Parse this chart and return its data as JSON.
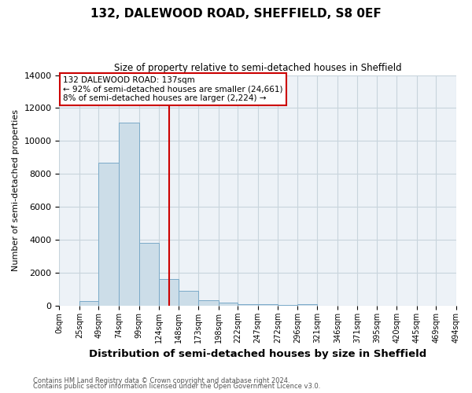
{
  "title": "132, DALEWOOD ROAD, SHEFFIELD, S8 0EF",
  "subtitle": "Size of property relative to semi-detached houses in Sheffield",
  "xlabel": "Distribution of semi-detached houses by size in Sheffield",
  "ylabel": "Number of semi-detached properties",
  "property_line_x": 137,
  "annotation_title": "132 DALEWOOD ROAD: 137sqm",
  "annotation_line1": "← 92% of semi-detached houses are smaller (24,661)",
  "annotation_line2": "8% of semi-detached houses are larger (2,224) →",
  "footnote1": "Contains HM Land Registry data © Crown copyright and database right 2024.",
  "footnote2": "Contains public sector information licensed under the Open Government Licence v3.0.",
  "bar_edges": [
    0,
    25,
    49,
    74,
    99,
    124,
    148,
    173,
    198,
    222,
    247,
    272,
    296,
    321,
    346,
    371,
    395,
    420,
    445,
    469,
    494
  ],
  "bar_heights": [
    0,
    300,
    8700,
    11100,
    3800,
    1600,
    900,
    350,
    200,
    120,
    80,
    50,
    120,
    0,
    0,
    0,
    0,
    0,
    0,
    0
  ],
  "bar_color": "#ccdde8",
  "bar_edge_color": "#7aaac8",
  "grid_color": "#c8d4dc",
  "background_color": "#edf2f7",
  "vline_color": "#cc0000",
  "annotation_box_color": "#ffffff",
  "annotation_box_edge": "#cc0000",
  "ylim": [
    0,
    14000
  ],
  "yticks": [
    0,
    2000,
    4000,
    6000,
    8000,
    10000,
    12000,
    14000
  ],
  "xtick_labels": [
    "0sqm",
    "25sqm",
    "49sqm",
    "74sqm",
    "99sqm",
    "124sqm",
    "148sqm",
    "173sqm",
    "198sqm",
    "222sqm",
    "247sqm",
    "272sqm",
    "296sqm",
    "321sqm",
    "346sqm",
    "371sqm",
    "395sqm",
    "420sqm",
    "445sqm",
    "469sqm",
    "494sqm"
  ]
}
